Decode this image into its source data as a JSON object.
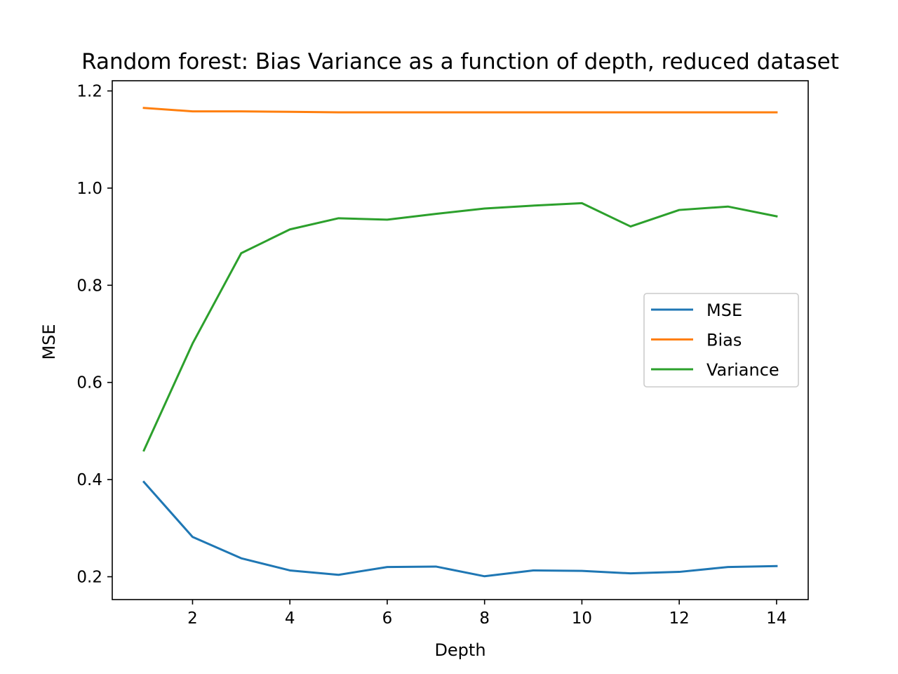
{
  "chart_data": {
    "type": "line",
    "title": "Random forest: Bias Variance as a function of depth, reduced dataset",
    "xlabel": "Depth",
    "ylabel": "MSE",
    "xlim": [
      0.35,
      14.65
    ],
    "ylim": [
      0.153,
      1.221
    ],
    "xticks": [
      2,
      4,
      6,
      8,
      10,
      12,
      14
    ],
    "xtick_labels": [
      "2",
      "4",
      "6",
      "8",
      "10",
      "12",
      "14"
    ],
    "yticks": [
      0.2,
      0.4,
      0.6,
      0.8,
      1.0,
      1.2
    ],
    "ytick_labels": [
      "0.2",
      "0.4",
      "0.6",
      "0.8",
      "1.0",
      "1.2"
    ],
    "grid": false,
    "legend_position": "center-right",
    "x": [
      1,
      2,
      3,
      4,
      5,
      6,
      7,
      8,
      9,
      10,
      11,
      12,
      13,
      14
    ],
    "series": [
      {
        "name": "MSE",
        "color": "#1f77b4",
        "values": [
          0.395,
          0.282,
          0.238,
          0.213,
          0.204,
          0.22,
          0.221,
          0.201,
          0.213,
          0.212,
          0.207,
          0.21,
          0.22,
          0.222
        ]
      },
      {
        "name": "Bias",
        "color": "#ff7f0e",
        "values": [
          1.165,
          1.158,
          1.158,
          1.157,
          1.156,
          1.156,
          1.156,
          1.156,
          1.156,
          1.156,
          1.156,
          1.156,
          1.156,
          1.156
        ]
      },
      {
        "name": "Variance",
        "color": "#2ca02c",
        "values": [
          0.46,
          0.68,
          0.866,
          0.915,
          0.938,
          0.935,
          0.947,
          0.958,
          0.964,
          0.969,
          0.921,
          0.955,
          0.962,
          0.942
        ]
      }
    ]
  }
}
